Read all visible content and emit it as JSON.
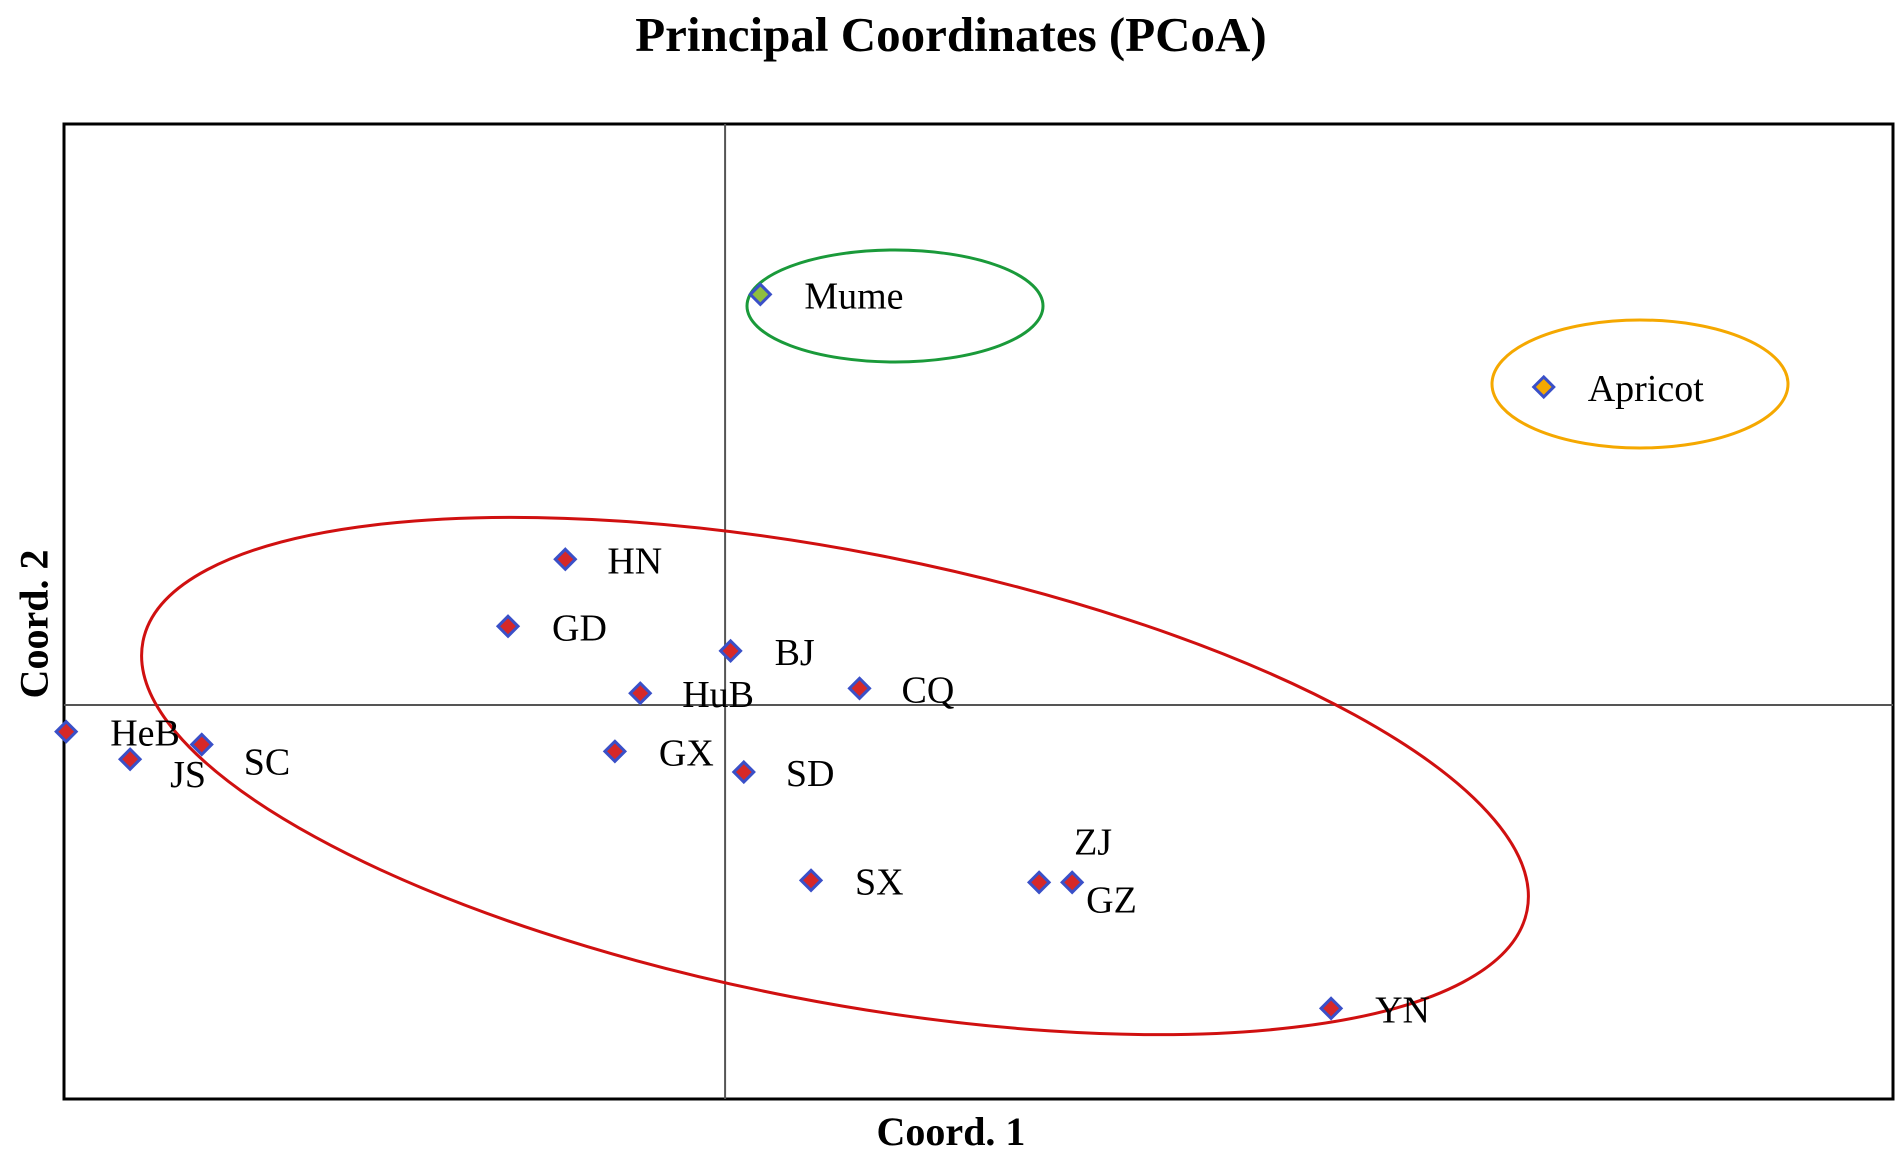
{
  "chart_data": {
    "type": "scatter",
    "title": "Principal Coordinates (PCoA)",
    "xlabel": "Coord. 1",
    "ylabel": "Coord. 2",
    "xlim": [
      -0.6,
      1.06
    ],
    "ylim": [
      -0.4,
      0.59
    ],
    "grid": false,
    "legend": "none",
    "reference_lines": {
      "x": 0,
      "y": 0
    },
    "colors": {
      "plot_frame": "#000000",
      "axis_line": "#555555",
      "marker_edge": "#3a50c8",
      "main_group": "#d62828",
      "mume": "#8fbf40",
      "apricot": "#f5a800",
      "mume_ellipse": "#1a9a3a",
      "apricot_ellipse": "#f5a800",
      "main_ellipse": "#d01010"
    },
    "points": [
      {
        "label": "HN",
        "x": -0.145,
        "y": 0.148,
        "group": "main"
      },
      {
        "label": "GD",
        "x": -0.197,
        "y": 0.08,
        "group": "main"
      },
      {
        "label": "BJ",
        "x": 0.005,
        "y": 0.055,
        "group": "main"
      },
      {
        "label": "HuB",
        "x": -0.077,
        "y": 0.012,
        "group": "main"
      },
      {
        "label": "CQ",
        "x": 0.122,
        "y": 0.017,
        "group": "main"
      },
      {
        "label": "HeB",
        "x": -0.598,
        "y": -0.027,
        "group": "main"
      },
      {
        "label": "SC",
        "x": -0.475,
        "y": -0.04,
        "group": "main"
      },
      {
        "label": "JS",
        "x": -0.54,
        "y": -0.055,
        "group": "main"
      },
      {
        "label": "GX",
        "x": -0.1,
        "y": -0.047,
        "group": "main"
      },
      {
        "label": "SD",
        "x": 0.017,
        "y": -0.068,
        "group": "main"
      },
      {
        "label": "SX",
        "x": 0.078,
        "y": -0.178,
        "group": "main"
      },
      {
        "label": "ZJ",
        "x": 0.285,
        "y": -0.18,
        "group": "main"
      },
      {
        "label": "GZ",
        "x": 0.315,
        "y": -0.18,
        "group": "main"
      },
      {
        "label": "YN",
        "x": 0.55,
        "y": -0.308,
        "group": "main"
      },
      {
        "label": "Mume",
        "x": 0.032,
        "y": 0.417,
        "group": "mume"
      },
      {
        "label": "Apricot",
        "x": 0.743,
        "y": 0.323,
        "group": "apricot"
      }
    ]
  }
}
